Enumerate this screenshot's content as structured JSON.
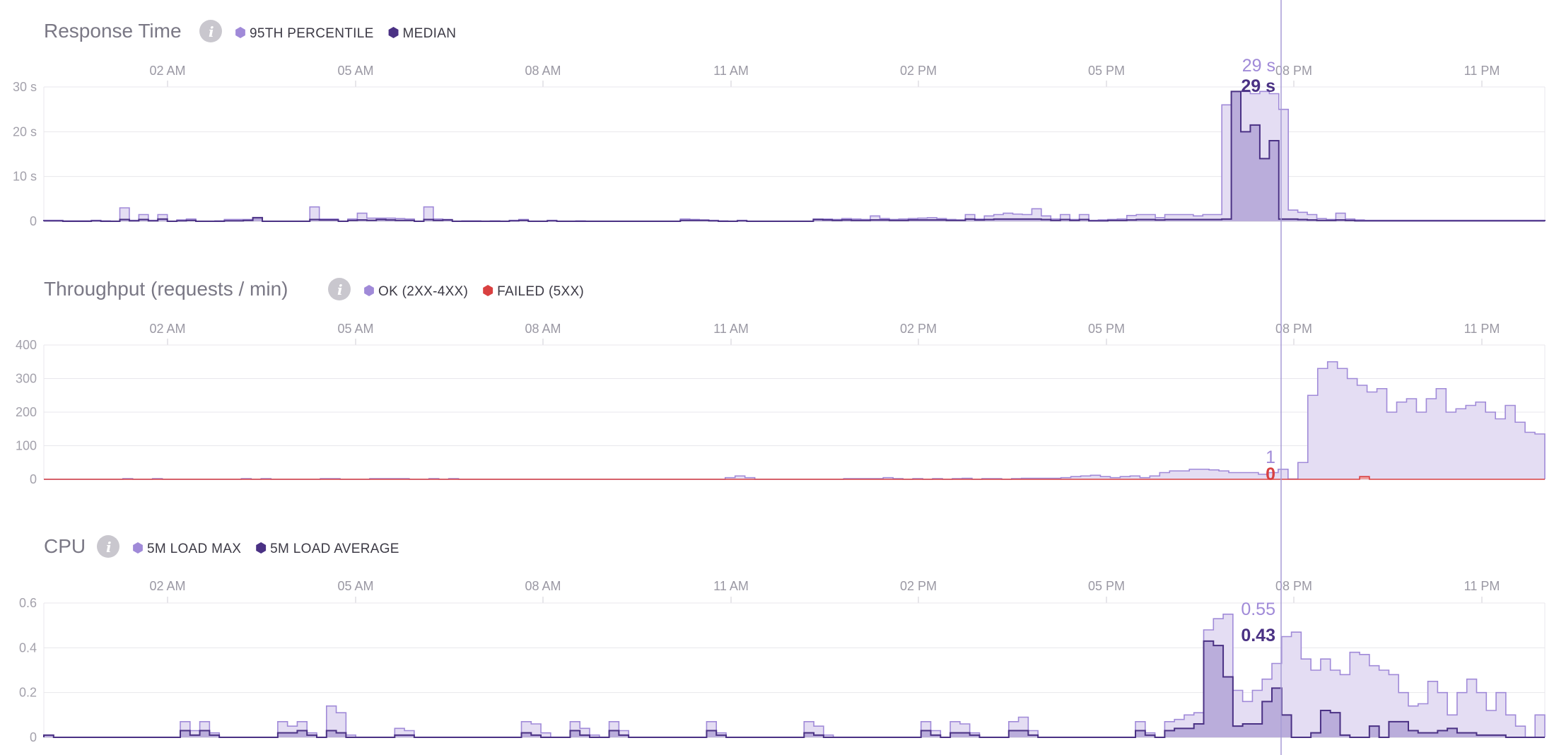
{
  "colors": {
    "light": "#a08ad8",
    "light_fill": "#e4ddf3",
    "dark": "#4a3184",
    "dark_fill": "#b3a4d6",
    "failed": "#d94040",
    "grid": "#e8e7ec",
    "axis": "#cfcdd6",
    "hover_line": "#a79bd6",
    "info_icon_bg": "#c9c7ce"
  },
  "x_ticks": [
    "02 AM",
    "05 AM",
    "08 AM",
    "11 AM",
    "02 PM",
    "05 PM",
    "08 PM",
    "11 PM"
  ],
  "panels": [
    {
      "title": "Response Time",
      "legend": [
        {
          "label": "95TH PERCENTILE",
          "color": "#a08ad8"
        },
        {
          "label": "MEDIAN",
          "color": "#4a3184"
        }
      ],
      "hover_values": [
        "29 s",
        "29 s"
      ]
    },
    {
      "title": "Throughput (requests / min)",
      "legend": [
        {
          "label": "OK (2XX-4XX)",
          "color": "#a08ad8"
        },
        {
          "label": "FAILED (5XX)",
          "color": "#d94040"
        }
      ],
      "hover_values": [
        "1",
        "0"
      ]
    },
    {
      "title": "CPU",
      "legend": [
        {
          "label": "5M LOAD MAX",
          "color": "#a08ad8"
        },
        {
          "label": "5M LOAD AVERAGE",
          "color": "#4a3184"
        }
      ],
      "hover_values": [
        "0.55",
        "0.43"
      ]
    }
  ],
  "chart_data": [
    {
      "type": "area",
      "title": "Response Time",
      "x": "24 hours, 15-minute step buckets, from about 00:15 to about 00:15 next day",
      "yticks": [
        "30 s",
        "20 s",
        "10 s",
        "0"
      ],
      "ylim": [
        0,
        30
      ],
      "series": [
        {
          "name": "95TH PERCENTILE",
          "values": [
            0.2,
            0.2,
            0.1,
            0.1,
            0.1,
            0.2,
            0.1,
            0,
            3,
            0.2,
            1.5,
            0.2,
            1.5,
            0,
            0.3,
            0.5,
            0,
            0,
            0.1,
            0.4,
            0.4,
            0.4,
            0.5,
            0,
            0,
            0,
            0,
            0,
            3.2,
            0.5,
            0.5,
            0,
            0.5,
            1.8,
            0.7,
            0.7,
            0.7,
            0.6,
            0.5,
            0,
            3.2,
            0.5,
            0.4,
            0,
            0.1,
            0.1,
            0,
            0.1,
            0,
            0.2,
            0.4,
            0,
            0,
            0.2,
            0,
            0,
            0.1,
            0,
            0,
            0,
            0,
            0,
            0,
            0,
            0,
            0,
            0,
            0.5,
            0.4,
            0.3,
            0.2,
            0.1,
            0,
            0.2,
            0,
            0,
            0,
            0,
            0,
            0,
            0,
            0.5,
            0.5,
            0.4,
            0.6,
            0.5,
            0.4,
            1.2,
            0.6,
            0.4,
            0.5,
            0.6,
            0.7,
            0.8,
            0.6,
            0.4,
            0.3,
            1.5,
            0.5,
            1.2,
            1.5,
            1.8,
            1.6,
            1.5,
            2.8,
            1.2,
            0.5,
            1.5,
            0.4,
            1.5,
            0.2,
            0.3,
            0.4,
            0.5,
            1.3,
            1.5,
            1.5,
            0.8,
            1.5,
            1.5,
            1.5,
            1.2,
            1.5,
            1.5,
            26,
            29,
            29,
            28.5,
            29,
            28.5,
            25,
            2.5,
            2,
            1.5,
            0.6,
            0.4,
            1.8,
            0.5,
            0.3,
            0.2,
            0.2,
            0.2,
            0.2,
            0.2,
            0.2,
            0.2,
            0.2,
            0.2,
            0.2,
            0.2,
            0.2,
            0.2,
            0.2,
            0.2,
            0.2,
            0.2,
            0.2,
            0.2
          ]
        },
        {
          "name": "MEDIAN",
          "values": [
            0.1,
            0.1,
            0,
            0,
            0,
            0.1,
            0,
            0,
            0.4,
            0.1,
            0.4,
            0.1,
            0.5,
            0,
            0.1,
            0.2,
            0,
            0,
            0,
            0.1,
            0.1,
            0.2,
            0.8,
            0,
            0,
            0,
            0,
            0,
            0.4,
            0.3,
            0.3,
            0,
            0.2,
            0.3,
            0.2,
            0.4,
            0.3,
            0.2,
            0.2,
            0,
            0.4,
            0.2,
            0.3,
            0,
            0,
            0,
            0,
            0,
            0,
            0.1,
            0.2,
            0,
            0,
            0.1,
            0,
            0,
            0,
            0,
            0,
            0,
            0,
            0,
            0,
            0,
            0,
            0,
            0,
            0.2,
            0.2,
            0.2,
            0.1,
            0,
            0,
            0.1,
            0,
            0,
            0,
            0,
            0,
            0,
            0,
            0.4,
            0.3,
            0.2,
            0.3,
            0.2,
            0.2,
            0.3,
            0.3,
            0.2,
            0.2,
            0.3,
            0.3,
            0.3,
            0.3,
            0.2,
            0.2,
            0.5,
            0.3,
            0.4,
            0.5,
            0.5,
            0.5,
            0.5,
            0.5,
            0.4,
            0.2,
            0.4,
            0.2,
            0.4,
            0.1,
            0.1,
            0.2,
            0.2,
            0.3,
            0.4,
            0.4,
            0.3,
            0.4,
            0.4,
            0.4,
            0.4,
            0.4,
            0.4,
            0.5,
            29,
            20,
            21.5,
            14,
            18,
            0.5,
            0.5,
            0.4,
            0.3,
            0.2,
            0.2,
            0.3,
            0.2,
            0.1,
            0.1,
            0.1,
            0.1,
            0.1,
            0.1,
            0.1,
            0.1,
            0.1,
            0.1,
            0.1,
            0.1,
            0.1,
            0.1,
            0.1,
            0.1,
            0.1,
            0.1,
            0.1,
            0.1
          ]
        }
      ]
    },
    {
      "type": "area",
      "title": "Throughput (requests / min)",
      "yticks": [
        "400",
        "300",
        "200",
        "100",
        "0"
      ],
      "ylim": [
        0,
        400
      ],
      "series": [
        {
          "name": "OK (2XX-4XX)",
          "values": [
            0,
            0,
            0,
            0,
            0,
            0,
            0,
            0,
            2,
            0,
            0,
            2,
            0,
            0,
            0,
            0,
            0,
            0,
            0,
            0,
            2,
            0,
            2,
            0,
            0,
            0,
            0,
            0,
            2,
            2,
            0,
            0,
            0,
            2,
            2,
            2,
            2,
            0,
            0,
            2,
            0,
            2,
            0,
            0,
            0,
            0,
            0,
            0,
            0,
            0,
            0,
            0,
            0,
            0,
            0,
            0,
            0,
            0,
            0,
            0,
            0,
            0,
            0,
            0,
            0,
            0,
            0,
            0,
            0,
            5,
            10,
            5,
            0,
            0,
            0,
            0,
            0,
            0,
            0,
            0,
            0,
            2,
            2,
            2,
            2,
            5,
            2,
            0,
            2,
            0,
            2,
            0,
            2,
            3,
            0,
            2,
            2,
            0,
            2,
            3,
            3,
            3,
            3,
            5,
            8,
            10,
            12,
            8,
            5,
            8,
            10,
            5,
            10,
            20,
            25,
            25,
            30,
            30,
            28,
            25,
            20,
            20,
            20,
            15,
            20,
            30,
            1,
            50,
            250,
            330,
            350,
            330,
            300,
            280,
            260,
            270,
            200,
            230,
            240,
            200,
            240,
            270,
            200,
            210,
            220,
            230,
            200,
            180,
            220,
            170,
            140,
            135
          ]
        },
        {
          "name": "FAILED (5XX)",
          "values": [
            0,
            0,
            0,
            0,
            0,
            0,
            0,
            0,
            0,
            0,
            0,
            0,
            0,
            0,
            0,
            0,
            0,
            0,
            0,
            0,
            0,
            0,
            0,
            0,
            0,
            0,
            0,
            0,
            0,
            0,
            0,
            0,
            0,
            0,
            0,
            0,
            0,
            0,
            0,
            0,
            0,
            0,
            0,
            0,
            0,
            0,
            0,
            0,
            0,
            0,
            0,
            0,
            0,
            0,
            0,
            0,
            0,
            0,
            0,
            0,
            0,
            0,
            0,
            0,
            0,
            0,
            0,
            0,
            0,
            0,
            0,
            0,
            0,
            0,
            0,
            0,
            0,
            0,
            0,
            0,
            0,
            0,
            0,
            0,
            0,
            0,
            0,
            0,
            0,
            0,
            0,
            0,
            0,
            0,
            0,
            0,
            0,
            0,
            0,
            0,
            0,
            0,
            0,
            0,
            0,
            0,
            0,
            0,
            0,
            0,
            0,
            0,
            0,
            0,
            0,
            0,
            0,
            0,
            0,
            0,
            0,
            0,
            0,
            0,
            0,
            0,
            0,
            0,
            0,
            0,
            0,
            0,
            0,
            0,
            0,
            8,
            0,
            0,
            0,
            0,
            0,
            0,
            0,
            0,
            0,
            0,
            0,
            0,
            0,
            0,
            0,
            0,
            0,
            0
          ]
        }
      ]
    },
    {
      "type": "area",
      "title": "CPU",
      "yticks": [
        "0.6",
        "0.4",
        "0.2",
        "0"
      ],
      "ylim": [
        0,
        0.6
      ],
      "series": [
        {
          "name": "5M LOAD MAX",
          "values": [
            0.01,
            0,
            0,
            0,
            0,
            0,
            0,
            0,
            0,
            0,
            0,
            0,
            0,
            0,
            0.07,
            0.03,
            0.07,
            0.02,
            0,
            0,
            0,
            0,
            0,
            0,
            0.07,
            0.05,
            0.07,
            0.02,
            0,
            0.14,
            0.11,
            0.01,
            0,
            0,
            0,
            0,
            0.04,
            0.03,
            0,
            0,
            0,
            0,
            0,
            0,
            0,
            0,
            0,
            0,
            0,
            0.07,
            0.06,
            0.02,
            0,
            0,
            0.07,
            0.04,
            0.01,
            0,
            0.07,
            0.03,
            0,
            0,
            0,
            0,
            0,
            0,
            0,
            0,
            0.07,
            0.02,
            0,
            0,
            0,
            0,
            0,
            0,
            0,
            0,
            0.07,
            0.05,
            0.01,
            0,
            0,
            0,
            0,
            0,
            0,
            0,
            0,
            0,
            0.07,
            0.03,
            0,
            0.07,
            0.06,
            0.02,
            0,
            0,
            0,
            0.07,
            0.09,
            0.03,
            0,
            0,
            0,
            0,
            0,
            0,
            0,
            0,
            0,
            0,
            0.07,
            0.02,
            0,
            0.07,
            0.08,
            0.1,
            0.11,
            0.48,
            0.53,
            0.55,
            0.21,
            0.16,
            0.21,
            0.26,
            0.33,
            0.45,
            0.47,
            0.35,
            0.3,
            0.35,
            0.3,
            0.28,
            0.38,
            0.37,
            0.32,
            0.3,
            0.28,
            0.2,
            0.14,
            0.15,
            0.25,
            0.2,
            0.1,
            0.2,
            0.26,
            0.2,
            0.12,
            0.2,
            0.1,
            0.05,
            0,
            0.1
          ]
        },
        {
          "name": "5M LOAD AVERAGE",
          "values": [
            0.01,
            0,
            0,
            0,
            0,
            0,
            0,
            0,
            0,
            0,
            0,
            0,
            0,
            0,
            0.03,
            0.01,
            0.03,
            0.01,
            0,
            0,
            0,
            0,
            0,
            0,
            0.02,
            0.02,
            0.03,
            0.01,
            0,
            0.03,
            0.02,
            0,
            0,
            0,
            0,
            0,
            0.01,
            0.01,
            0,
            0,
            0,
            0,
            0,
            0,
            0,
            0,
            0,
            0,
            0,
            0.02,
            0.01,
            0,
            0,
            0,
            0.03,
            0.01,
            0,
            0,
            0.03,
            0.01,
            0,
            0,
            0,
            0,
            0,
            0,
            0,
            0,
            0.03,
            0.01,
            0,
            0,
            0,
            0,
            0,
            0,
            0,
            0,
            0.02,
            0.01,
            0,
            0,
            0,
            0,
            0,
            0,
            0,
            0,
            0,
            0,
            0.03,
            0.01,
            0,
            0.02,
            0.02,
            0.01,
            0,
            0,
            0,
            0.03,
            0.03,
            0.01,
            0,
            0,
            0,
            0,
            0,
            0,
            0,
            0,
            0,
            0,
            0.03,
            0.01,
            0,
            0.03,
            0.04,
            0.04,
            0.06,
            0.43,
            0.41,
            0.27,
            0.05,
            0.06,
            0.06,
            0.16,
            0.22,
            0.1,
            0,
            0,
            0.02,
            0.12,
            0.11,
            0.01,
            0,
            0,
            0.05,
            0,
            0.07,
            0.07,
            0.03,
            0.02,
            0.02,
            0.03,
            0.04,
            0.02,
            0.02,
            0.01,
            0.01,
            0.01,
            0,
            0,
            0,
            0
          ]
        }
      ]
    }
  ]
}
